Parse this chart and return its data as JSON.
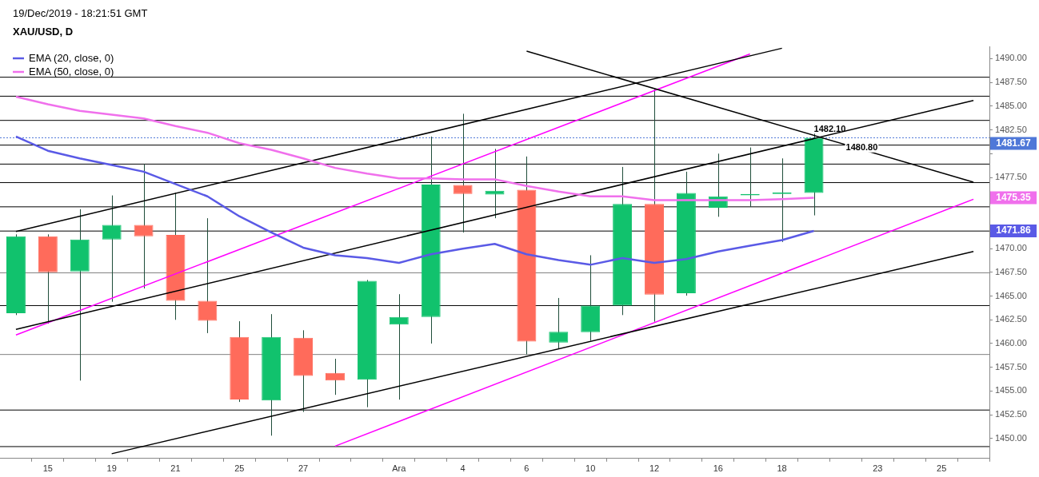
{
  "chart_data": {
    "type": "candlestick",
    "title": "XAU/USD, D",
    "subtitle": "19/Dec/2019 - 18:21:51 GMT",
    "categories": [
      null,
      "15",
      null,
      "19",
      null,
      "21",
      null,
      "25",
      null,
      "27",
      null,
      null,
      "Ara",
      null,
      "4",
      null,
      "6",
      null,
      "10",
      null,
      "12",
      null,
      "16",
      null,
      "18",
      null,
      null,
      "23",
      null,
      "25",
      null
    ],
    "ohlc": [
      [
        1463.2,
        1471.5,
        1463.0,
        1471.3
      ],
      [
        1471.3,
        1471.5,
        1462.1,
        1467.5
      ],
      [
        1467.6,
        1474.15,
        1456.1,
        1470.95
      ],
      [
        1470.95,
        1475.6,
        1464.4,
        1472.5
      ],
      [
        1472.5,
        1478.9,
        1465.8,
        1471.3
      ],
      [
        1471.45,
        1475.9,
        1462.5,
        1464.5
      ],
      [
        1464.5,
        1473.2,
        1461.1,
        1462.4
      ],
      [
        1460.7,
        1462.35,
        1453.85,
        1454.1
      ],
      [
        1454.0,
        1463.1,
        1450.3,
        1460.7
      ],
      [
        1460.6,
        1461.4,
        1452.8,
        1456.6
      ],
      [
        1456.9,
        1458.4,
        1454.6,
        1456.1
      ],
      [
        1456.2,
        1466.7,
        1453.3,
        1466.6
      ],
      [
        1462.0,
        1465.2,
        1454.1,
        1462.8
      ],
      [
        1462.8,
        1481.8,
        1460.0,
        1476.75
      ],
      [
        1476.7,
        1484.2,
        1471.7,
        1475.75
      ],
      [
        1475.7,
        1480.5,
        1473.2,
        1476.1
      ],
      [
        1476.2,
        1479.7,
        1458.85,
        1460.2
      ],
      [
        1460.1,
        1464.8,
        1459.5,
        1461.25
      ],
      [
        1461.2,
        1469.3,
        1460.3,
        1464.0
      ],
      [
        1464.0,
        1478.6,
        1463.0,
        1474.7
      ],
      [
        1474.7,
        1486.8,
        1462.3,
        1465.15
      ],
      [
        1465.3,
        1478.1,
        1465.05,
        1475.85
      ],
      [
        1474.3,
        1480.0,
        1473.35,
        1475.5
      ],
      [
        1475.6,
        1480.65,
        1474.4,
        1475.75
      ],
      [
        1475.75,
        1479.5,
        1470.7,
        1475.9
      ],
      [
        1475.85,
        1482.1,
        1473.5,
        1481.67
      ],
      null,
      null,
      null,
      null,
      null
    ],
    "colors": [
      "#11c26d",
      "#ff6b5b",
      "#11c26d",
      "#11c26d",
      "#ff6b5b",
      "#ff6b5b",
      "#ff6b5b",
      "#ff6b5b",
      "#11c26d",
      "#ff6b5b",
      "#ff6b5b",
      "#11c26d",
      "#11c26d",
      "#11c26d",
      "#ff6b5b",
      "#11c26d",
      "#ff6b5b",
      "#11c26d",
      "#11c26d",
      "#11c26d",
      "#ff6b5b",
      "#11c26d",
      "#11c26d",
      "#11c26d",
      "#11c26d",
      "#11c26d",
      null,
      null,
      null,
      null,
      null
    ],
    "series": [
      {
        "type": "line",
        "name": "EMA (20, close, 0)",
        "color": "#5a5ae6",
        "values": [
          1481.8,
          1480.3,
          1479.5,
          1478.8,
          1478.1,
          1476.8,
          1475.5,
          1473.4,
          1471.7,
          1470.1,
          1469.3,
          1469.0,
          1468.5,
          1469.4,
          1470.0,
          1470.5,
          1469.4,
          1468.8,
          1468.3,
          1469.0,
          1468.5,
          1468.9,
          1469.7,
          1470.3,
          1470.9,
          1471.86,
          null,
          null,
          null,
          null,
          null
        ]
      },
      {
        "type": "line",
        "name": "EMA (50, close, 0)",
        "color": "#f070ec",
        "values": [
          1486.0,
          1485.2,
          1484.5,
          1484.1,
          1483.7,
          1482.9,
          1482.2,
          1481.1,
          1480.4,
          1479.5,
          1478.5,
          1477.9,
          1477.4,
          1477.4,
          1477.3,
          1477.3,
          1476.6,
          1476.0,
          1475.5,
          1475.5,
          1475.1,
          1475.1,
          1475.1,
          1475.1,
          1475.2,
          1475.35,
          null,
          null,
          null,
          null,
          null
        ]
      },
      {
        "type": "line",
        "color": "#000000",
        "values": [
          1471.8,
          null,
          null,
          null,
          null,
          null,
          null,
          null,
          null,
          null,
          null,
          null,
          null,
          null,
          null,
          null,
          null,
          null,
          null,
          null,
          null,
          null,
          null,
          null,
          1491.1,
          null,
          null,
          null,
          null,
          null,
          null
        ]
      },
      {
        "type": "line",
        "color": "#000000",
        "values": [
          1461.5,
          null,
          null,
          null,
          null,
          null,
          null,
          null,
          null,
          null,
          null,
          null,
          null,
          null,
          null,
          null,
          null,
          null,
          null,
          null,
          null,
          null,
          null,
          null,
          null,
          null,
          null,
          null,
          null,
          null,
          1485.6
        ]
      },
      {
        "type": "line",
        "color": "#000000",
        "values": [
          null,
          null,
          null,
          1448.4,
          null,
          null,
          null,
          null,
          null,
          null,
          null,
          null,
          null,
          null,
          null,
          null,
          null,
          null,
          null,
          null,
          null,
          null,
          null,
          null,
          null,
          null,
          null,
          null,
          null,
          null,
          1469.7
        ]
      },
      {
        "type": "line",
        "color": "#000000",
        "values": [
          null,
          null,
          null,
          null,
          null,
          null,
          null,
          null,
          null,
          null,
          null,
          null,
          null,
          null,
          null,
          null,
          1490.8,
          null,
          null,
          null,
          null,
          null,
          null,
          null,
          null,
          null,
          null,
          null,
          null,
          null,
          1477.0
        ]
      },
      {
        "type": "line",
        "color": "#ff00ff",
        "values": [
          1460.9,
          null,
          null,
          null,
          null,
          null,
          null,
          null,
          null,
          null,
          null,
          null,
          null,
          null,
          null,
          null,
          null,
          null,
          null,
          null,
          null,
          null,
          null,
          1490.5,
          null,
          null,
          null,
          null,
          null,
          null,
          null
        ]
      },
      {
        "type": "line",
        "color": "#ff00ff",
        "values": [
          null,
          null,
          null,
          null,
          null,
          null,
          null,
          null,
          null,
          null,
          1449.2,
          null,
          null,
          null,
          null,
          null,
          null,
          null,
          null,
          null,
          null,
          null,
          null,
          null,
          null,
          null,
          null,
          null,
          null,
          null,
          1475.2
        ]
      }
    ],
    "ylim": [
      1447.9,
      1491.3
    ],
    "yticks": [
      {
        "value": 1450,
        "label": "1450.00"
      },
      {
        "value": 1452.5,
        "label": "1452.50"
      },
      {
        "value": 1455,
        "label": "1455.00"
      },
      {
        "value": 1457.5,
        "label": "1457.50"
      },
      {
        "value": 1460,
        "label": "1460.00"
      },
      {
        "value": 1462.5,
        "label": "1462.50"
      },
      {
        "value": 1465,
        "label": "1465.00"
      },
      {
        "value": 1467.5,
        "label": "1467.50"
      },
      {
        "value": 1470,
        "label": "1470.00"
      },
      {
        "value": 1472.5,
        "label": null
      },
      {
        "value": 1475,
        "label": null
      },
      {
        "value": 1477.5,
        "label": "1477.50"
      },
      {
        "value": 1480,
        "label": null
      },
      {
        "value": 1482.5,
        "label": "1482.50"
      },
      {
        "value": 1485,
        "label": "1485.00"
      },
      {
        "value": 1487.5,
        "label": "1487.50"
      },
      {
        "value": 1490,
        "label": "1490.00"
      }
    ],
    "ref_lines": [
      {
        "axis": "y",
        "value": 1488.05,
        "color": "#000000"
      },
      {
        "axis": "y",
        "value": 1486.05,
        "color": "#000000"
      },
      {
        "axis": "y",
        "value": 1483.5,
        "color": "#000000"
      },
      {
        "axis": "y",
        "value": 1480.9,
        "color": "#000000"
      },
      {
        "axis": "y",
        "value": 1478.9,
        "color": "#000000"
      },
      {
        "axis": "y",
        "value": 1476.95,
        "color": "#000000"
      },
      {
        "axis": "y",
        "value": 1474.4,
        "color": "#000000"
      },
      {
        "axis": "y",
        "value": 1471.85,
        "color": "#000000"
      },
      {
        "axis": "y",
        "value": 1467.45,
        "color": "#808080"
      },
      {
        "axis": "y",
        "value": 1464.0,
        "color": "#000000"
      },
      {
        "axis": "y",
        "value": 1458.85,
        "color": "#808080"
      },
      {
        "axis": "y",
        "value": 1453.0,
        "color": "#000000"
      },
      {
        "axis": "y",
        "value": 1449.15,
        "color": "#000000"
      },
      {
        "axis": "y",
        "value": 1481.67,
        "label": "1481.67",
        "color": "#4f78d8",
        "line_style": "dotted"
      }
    ],
    "annotations": [
      {
        "text": "1482.10",
        "y": 1482.1
      },
      {
        "text": "1480.80",
        "y": 1480.8
      },
      "1471.86",
      "1475.35"
    ],
    "legend": "top left",
    "grid": false,
    "marker": "none",
    "line_style": "solid"
  }
}
